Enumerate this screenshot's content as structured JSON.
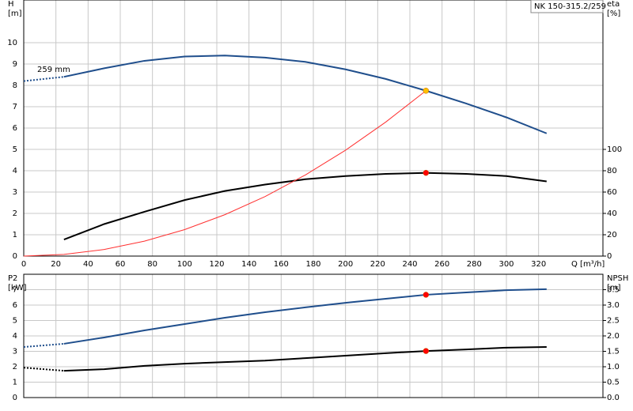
{
  "chart_data": [
    {
      "type": "line",
      "title": "NK 150-315.2/259",
      "y_label": [
        "H",
        "[m]"
      ],
      "y2_label": [
        "eta",
        "[%]"
      ],
      "x_label": "Q [m³/h]",
      "annotation": "259 mm",
      "xlim": [
        0,
        360
      ],
      "xticks": [
        0,
        20,
        40,
        60,
        80,
        100,
        120,
        140,
        160,
        180,
        200,
        220,
        240,
        260,
        280,
        300,
        320
      ],
      "ylim": [
        0,
        12
      ],
      "yticks": [
        0,
        1,
        2,
        3,
        4,
        5,
        6,
        7,
        8,
        9,
        10
      ],
      "y2lim": [
        0,
        240
      ],
      "y2ticks": [
        0,
        20,
        40,
        60,
        80,
        100
      ],
      "grid": true,
      "series": [
        {
          "color": "#1f4e8c",
          "width": 2,
          "dashed": true,
          "x": [
            0,
            25
          ],
          "values": [
            8.2,
            8.4
          ]
        },
        {
          "color": "#1f4e8c",
          "width": 2,
          "dashed": false,
          "x": [
            25,
            50,
            75,
            100,
            125,
            150,
            175,
            200,
            225,
            250,
            275,
            300,
            325
          ],
          "values": [
            8.4,
            8.8,
            9.15,
            9.35,
            9.4,
            9.3,
            9.1,
            8.75,
            8.3,
            7.75,
            7.15,
            6.5,
            5.75
          ]
        },
        {
          "color": "#000000",
          "width": 2,
          "dashed": false,
          "axis": "y2",
          "x": [
            25,
            50,
            75,
            100,
            125,
            150,
            175,
            200,
            225,
            250,
            275,
            300,
            325
          ],
          "values": [
            15.5,
            30,
            41.5,
            52.5,
            61,
            67,
            72,
            75,
            77,
            78,
            77,
            75,
            70
          ]
        },
        {
          "color": "#ff3030",
          "width": 1,
          "dashed": false,
          "x": [
            0,
            25,
            50,
            75,
            100,
            125,
            150,
            175,
            200,
            225,
            250
          ],
          "values": [
            0,
            0.08,
            0.31,
            0.7,
            1.24,
            1.94,
            2.79,
            3.8,
            4.96,
            6.28,
            7.75
          ]
        }
      ],
      "points": [
        {
          "x": 250,
          "y": 7.75,
          "color": "#ffc000"
        },
        {
          "x": 250,
          "y": 78,
          "color": "#ff0000",
          "axis": "y2"
        }
      ]
    },
    {
      "type": "line",
      "y_label": [
        "P2",
        "[kW]"
      ],
      "y2_label": [
        "NPSH",
        "[m]"
      ],
      "xlim": [
        0,
        360
      ],
      "xticks": [
        0,
        20,
        40,
        60,
        80,
        100,
        120,
        140,
        160,
        180,
        200,
        220,
        240,
        260,
        280,
        300,
        320
      ],
      "ylim": [
        0,
        8
      ],
      "yticks": [
        0,
        1,
        2,
        3,
        4,
        5,
        6,
        7
      ],
      "y2lim": [
        0,
        4
      ],
      "y2ticks": [
        {
          "value": 0,
          "label": "0.0"
        },
        0.5,
        {
          "value": 1,
          "label": "1.0"
        },
        1.5,
        {
          "value": 2,
          "label": "2.0"
        },
        2.5,
        {
          "value": 3,
          "label": "3.0"
        },
        3.5
      ],
      "grid": true,
      "series": [
        {
          "color": "#1f4e8c",
          "width": 2,
          "dashed": true,
          "x": [
            0,
            25
          ],
          "values": [
            3.28,
            3.49
          ]
        },
        {
          "color": "#1f4e8c",
          "width": 2,
          "dashed": false,
          "x": [
            25,
            50,
            75,
            100,
            125,
            150,
            175,
            200,
            225,
            250,
            275,
            300,
            325
          ],
          "values": [
            3.49,
            3.9,
            4.36,
            4.77,
            5.18,
            5.54,
            5.85,
            6.15,
            6.41,
            6.67,
            6.82,
            6.97,
            7.03
          ]
        },
        {
          "color": "#000000",
          "width": 2,
          "dashed": true,
          "axis": "y2",
          "x": [
            0,
            25
          ],
          "values": [
            0.97,
            0.87
          ]
        },
        {
          "color": "#000000",
          "width": 2,
          "dashed": false,
          "axis": "y2",
          "x": [
            25,
            50,
            75,
            100,
            125,
            150,
            175,
            200,
            225,
            250,
            275,
            300,
            325
          ],
          "values": [
            0.87,
            0.92,
            1.03,
            1.1,
            1.15,
            1.2,
            1.28,
            1.36,
            1.44,
            1.51,
            1.56,
            1.62,
            1.64
          ]
        }
      ],
      "points": [
        {
          "x": 250,
          "y": 6.67,
          "color": "#ff0000"
        },
        {
          "x": 250,
          "y": 1.51,
          "color": "#ff0000",
          "axis": "y2"
        }
      ]
    }
  ]
}
